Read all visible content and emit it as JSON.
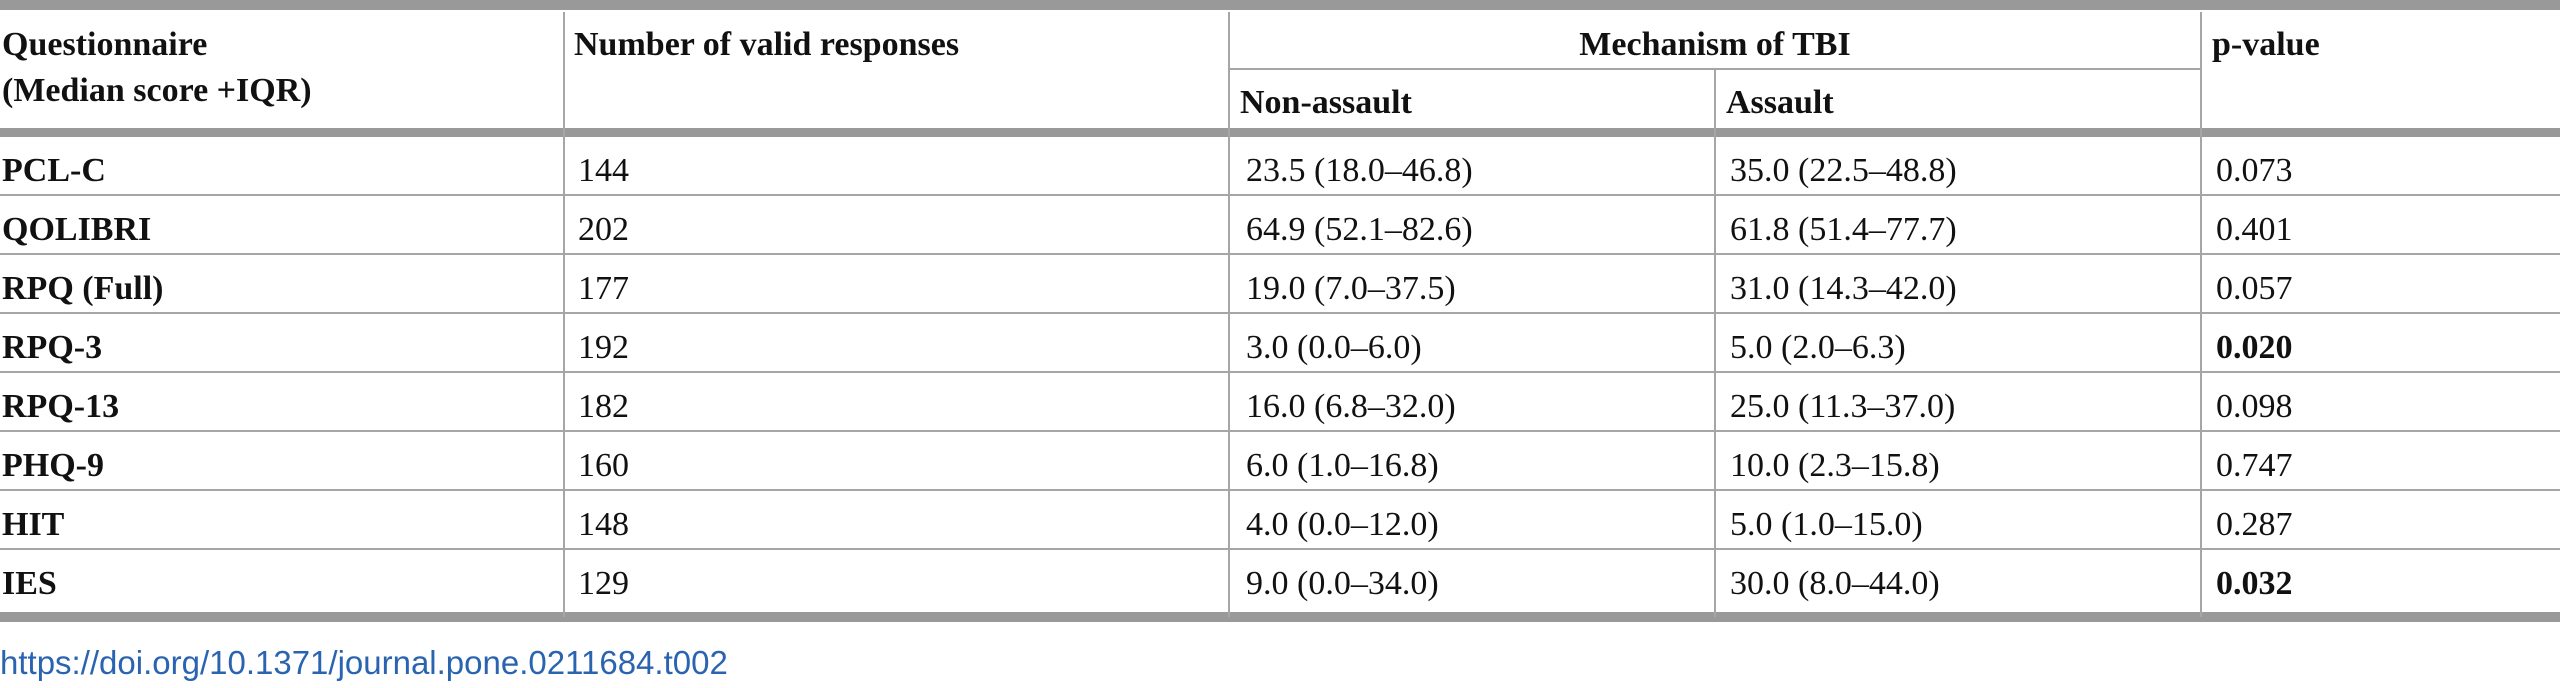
{
  "table": {
    "headers": {
      "questionnaire_line1": "Questionnaire",
      "questionnaire_line2": "(Median score +IQR)",
      "valid_responses": "Number of valid responses",
      "mechanism": "Mechanism of TBI",
      "non_assault": "Non-assault",
      "assault": "Assault",
      "p_value": "p-value"
    },
    "rows": [
      {
        "name": "PCL-C",
        "n": "144",
        "non_assault": "23.5 (18.0–46.8)",
        "assault": "35.0 (22.5–48.8)",
        "p": "0.073"
      },
      {
        "name": "QOLIBRI",
        "n": "202",
        "non_assault": "64.9 (52.1–82.6)",
        "assault": "61.8 (51.4–77.7)",
        "p": "0.401"
      },
      {
        "name": "RPQ (Full)",
        "n": "177",
        "non_assault": "19.0 (7.0–37.5)",
        "assault": "31.0 (14.3–42.0)",
        "p": "0.057"
      },
      {
        "name": "RPQ-3",
        "n": "192",
        "non_assault": "3.0 (0.0–6.0)",
        "assault": "5.0 (2.0–6.3)",
        "p": "0.020"
      },
      {
        "name": "RPQ-13",
        "n": "182",
        "non_assault": "16.0 (6.8–32.0)",
        "assault": "25.0 (11.3–37.0)",
        "p": "0.098"
      },
      {
        "name": "PHQ-9",
        "n": "160",
        "non_assault": "6.0 (1.0–16.8)",
        "assault": "10.0 (2.3–15.8)",
        "p": "0.747"
      },
      {
        "name": "HIT",
        "n": "148",
        "non_assault": "4.0 (0.0–12.0)",
        "assault": "5.0 (1.0–15.0)",
        "p": "0.287"
      },
      {
        "name": "IES",
        "n": "129",
        "non_assault": "9.0 (0.0–34.0)",
        "assault": "30.0 (8.0–44.0)",
        "p": "0.032"
      }
    ]
  },
  "doi_link": "https://doi.org/10.1371/journal.pone.0211684.t002"
}
